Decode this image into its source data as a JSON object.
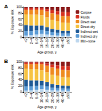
{
  "chart_data": [
    {
      "type": "bar",
      "title": "A",
      "stacked": true,
      "legend": "top right",
      "grid": false,
      "x_label": "Age group, y",
      "y_label": "% Exposure risk",
      "categories": [
        "<2",
        "2–4",
        "5–9",
        "10–14",
        "15–19",
        "20–29",
        "30–39",
        "40–49",
        "≥50"
      ],
      "ylim": [
        0,
        100
      ],
      "yticks": [
        0,
        20,
        40,
        60,
        80,
        100
      ],
      "series": [
        {
          "name": "Min–none",
          "color": "#bdd7ee",
          "values": [
            5,
            6,
            8,
            10,
            8,
            6,
            5,
            4,
            4
          ]
        },
        {
          "name": "Indirect dry",
          "color": "#5b9bd5",
          "values": [
            15,
            14,
            14,
            13,
            12,
            10,
            9,
            8,
            8
          ]
        },
        {
          "name": "Indirect wet",
          "color": "#1f5a96",
          "values": [
            20,
            18,
            16,
            15,
            13,
            11,
            10,
            9,
            9
          ]
        },
        {
          "name": "Direct dry",
          "color": "#f6c343",
          "values": [
            35,
            36,
            36,
            34,
            32,
            30,
            28,
            27,
            26
          ]
        },
        {
          "name": "Direct wet",
          "color": "#ef8a1f",
          "values": [
            15,
            16,
            17,
            18,
            20,
            22,
            22,
            22,
            22
          ]
        },
        {
          "name": "Fluids",
          "color": "#d7301f",
          "values": [
            6,
            6,
            5,
            6,
            8,
            10,
            12,
            13,
            13
          ]
        },
        {
          "name": "Corpse",
          "color": "#8b1a1a",
          "values": [
            4,
            4,
            4,
            4,
            7,
            11,
            14,
            17,
            18
          ]
        }
      ]
    },
    {
      "type": "bar",
      "title": "B",
      "stacked": true,
      "grid": false,
      "x_label": "Age group, y",
      "y_label": "% Exposure risk",
      "categories": [
        "<2",
        "2–4",
        "5–9",
        "10–14",
        "15–19",
        "20–29",
        "30–39",
        "40–49",
        "≥50"
      ],
      "ylim": [
        0,
        100
      ],
      "yticks": [
        0,
        20,
        40,
        60,
        80,
        100
      ],
      "series": [
        {
          "name": "Min–none",
          "color": "#bdd7ee",
          "values": [
            4,
            5,
            7,
            9,
            7,
            5,
            4,
            4,
            3
          ]
        },
        {
          "name": "Indirect dry",
          "color": "#5b9bd5",
          "values": [
            14,
            13,
            13,
            12,
            11,
            9,
            8,
            7,
            7
          ]
        },
        {
          "name": "Indirect wet",
          "color": "#1f5a96",
          "values": [
            22,
            20,
            18,
            16,
            14,
            12,
            11,
            10,
            10
          ]
        },
        {
          "name": "Direct dry",
          "color": "#f6c343",
          "values": [
            36,
            37,
            37,
            35,
            33,
            31,
            30,
            28,
            28
          ]
        },
        {
          "name": "Direct wet",
          "color": "#ef8a1f",
          "values": [
            16,
            17,
            18,
            20,
            22,
            24,
            24,
            24,
            24
          ]
        },
        {
          "name": "Fluids",
          "color": "#d7301f",
          "values": [
            5,
            5,
            4,
            5,
            7,
            9,
            11,
            13,
            13
          ]
        },
        {
          "name": "Corpse",
          "color": "#8b1a1a",
          "values": [
            3,
            3,
            3,
            3,
            6,
            10,
            12,
            14,
            15
          ]
        }
      ]
    }
  ]
}
